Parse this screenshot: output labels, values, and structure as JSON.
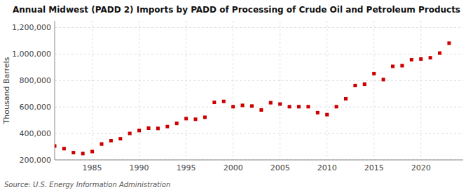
{
  "chart_data": {
    "type": "scatter",
    "title": "Annual Midwest (PADD 2) Imports by PADD of Processing of Crude Oil and Petroleum Products",
    "y_label": "Thousand Barrels",
    "source": "Source: U.S. Energy Information Administration",
    "color": "#cc0000",
    "marker": "square",
    "grid": true,
    "xlim": [
      1981,
      2024.5
    ],
    "xticks": [
      1985,
      1990,
      1995,
      2000,
      2005,
      2010,
      2015,
      2020
    ],
    "ylim": [
      200000,
      1250000
    ],
    "yticks": [
      {
        "value": 200000,
        "label": "200,000"
      },
      {
        "value": 400000,
        "label": "400,000"
      },
      {
        "value": 600000,
        "label": "600,000"
      },
      {
        "value": 800000,
        "label": "800,000"
      },
      {
        "value": 1000000,
        "label": "1,000,000"
      },
      {
        "value": 1200000,
        "label": "1,200,000"
      }
    ],
    "x": [
      1981,
      1982,
      1983,
      1984,
      1985,
      1986,
      1987,
      1988,
      1989,
      1990,
      1991,
      1992,
      1993,
      1994,
      1995,
      1996,
      1997,
      1998,
      1999,
      2000,
      2001,
      2002,
      2003,
      2004,
      2005,
      2006,
      2007,
      2008,
      2009,
      2010,
      2011,
      2012,
      2013,
      2014,
      2015,
      2016,
      2017,
      2018,
      2019,
      2020,
      2021,
      2022,
      2023
    ],
    "values": [
      305000,
      285000,
      255000,
      248000,
      263000,
      320000,
      345000,
      360000,
      400000,
      422000,
      440000,
      438000,
      452000,
      476000,
      512000,
      507000,
      522000,
      635000,
      642000,
      602000,
      612000,
      607000,
      577000,
      632000,
      622000,
      602000,
      602000,
      602000,
      557000,
      542000,
      602000,
      662000,
      762000,
      772000,
      852000,
      807000,
      907000,
      912000,
      957000,
      962000,
      972000,
      1007000,
      1082000
    ]
  }
}
